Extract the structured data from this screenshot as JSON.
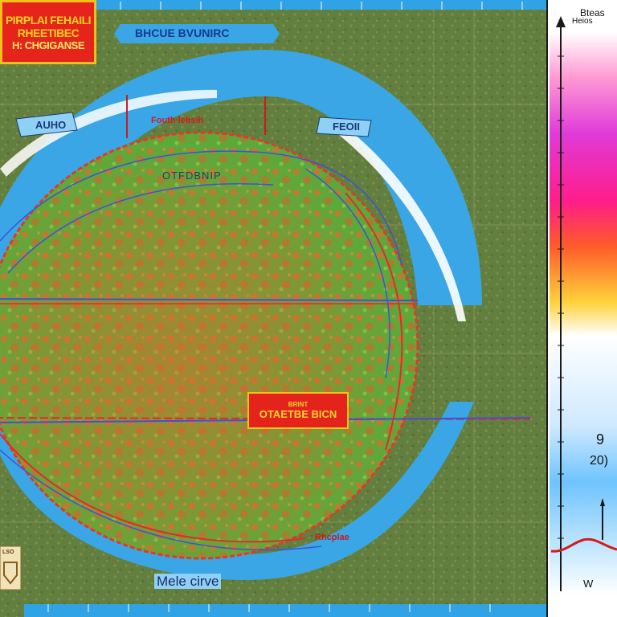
{
  "map": {
    "title_lines": [
      "PIRPLAI FEHAILI",
      "RHEETIBEC",
      "H: CHGIGANSE"
    ],
    "top_banner": "BHCUE BVUNIRC",
    "ring_label_left": "AUHO",
    "ring_label_right": "FEOII",
    "red_label_top": "Fouth lebsih",
    "inner_label": "OTFDBNIP",
    "center_badge": {
      "line1": "BRINT",
      "line2": "OTAETBE BICN"
    },
    "bottom_label": "Mele cirve",
    "bottom_red_label": "Rhcplae",
    "bottom_left_badge": "LSO",
    "colors": {
      "land": "#5f7a3e",
      "globe_green": "#5ba83a",
      "globe_orange": "#e2682a",
      "ocean_ring": "#3aa6e6",
      "ring_inner": "#8fd0f5",
      "red_line": "#e52a2a",
      "blue_line": "#3f52d8",
      "badge_fill": "#e3231c",
      "badge_text": "#f5d21f"
    }
  },
  "legend": {
    "title_line1": "Bteas",
    "title_line2": "Heios",
    "value_main": "9",
    "value_sub": "20)",
    "bottom_mark": "W",
    "gradient_stops": [
      "#ffffff",
      "#ff9bd3",
      "#e03bd9",
      "#ff1d8a",
      "#ff5a2a",
      "#ffd23a",
      "#ffffff",
      "#cfe9ff",
      "#6ec4ff",
      "#ffffff"
    ]
  }
}
